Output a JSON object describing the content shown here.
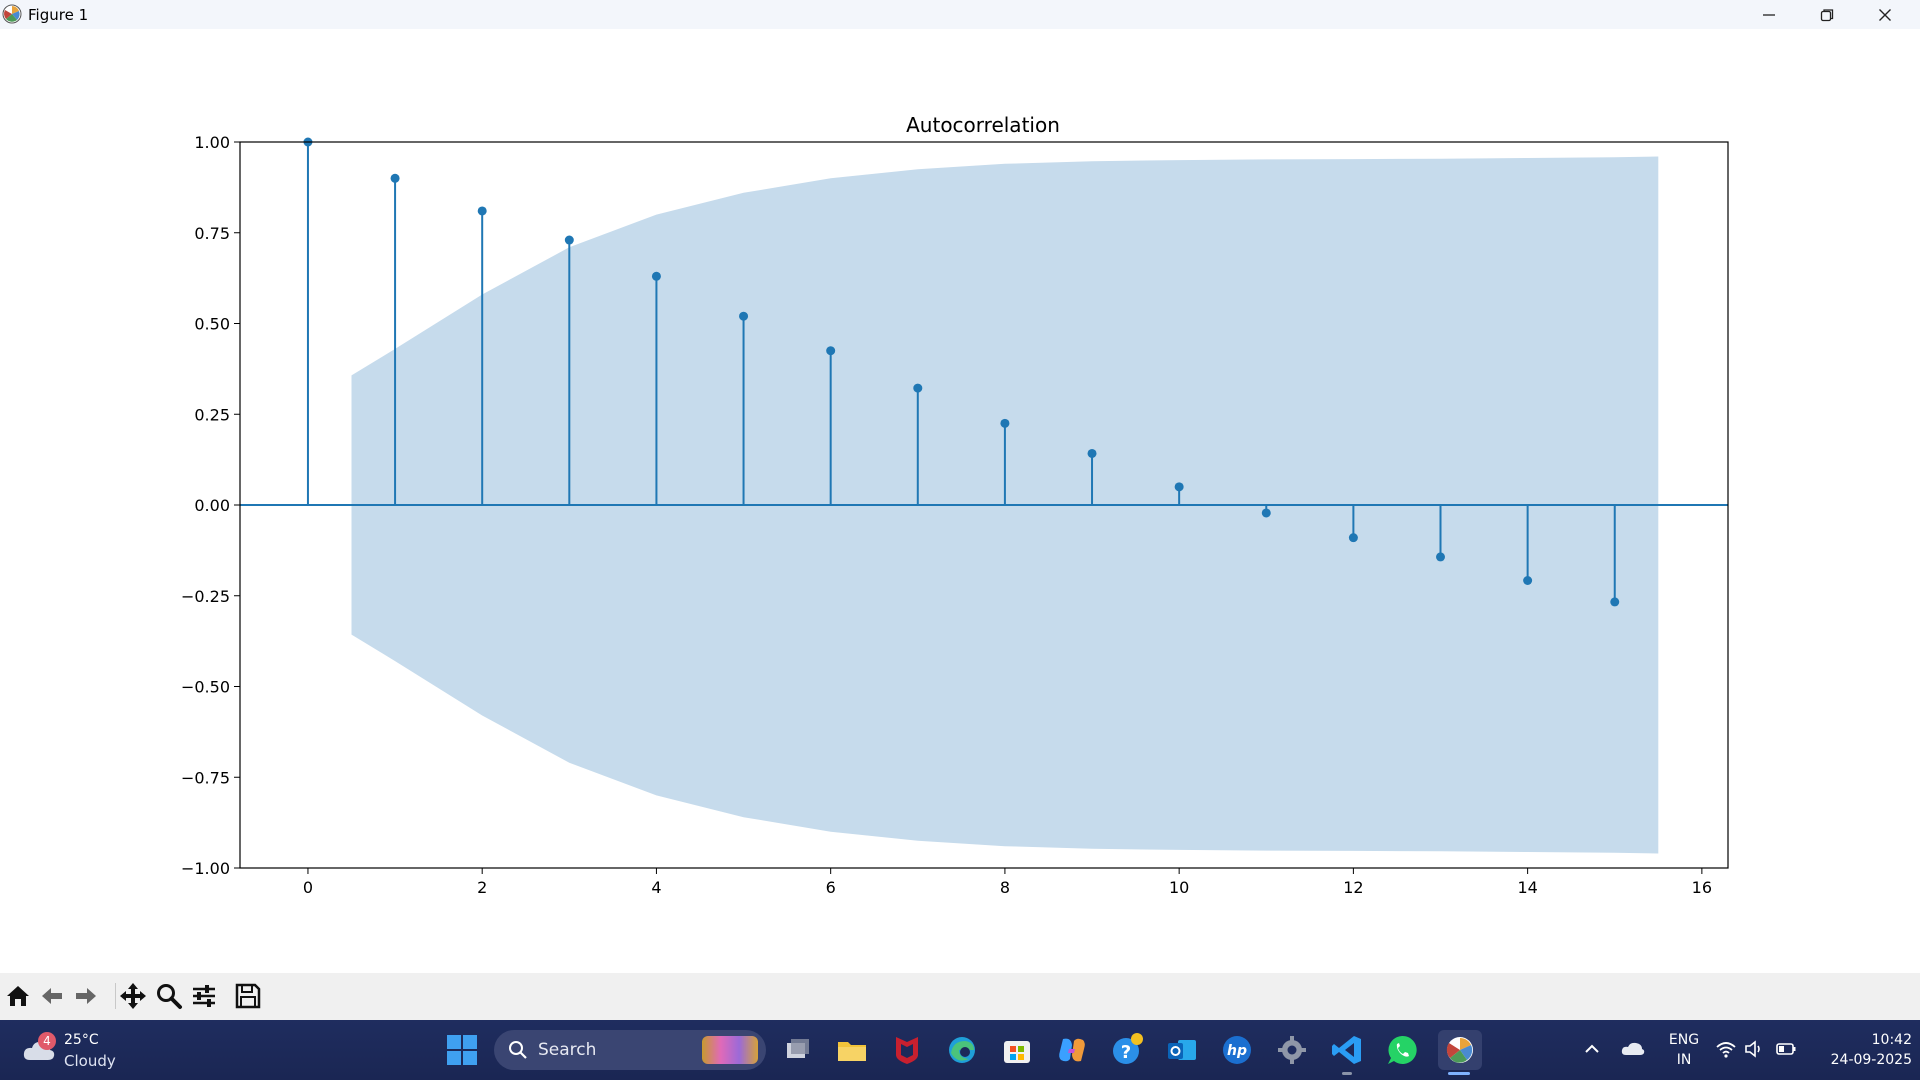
{
  "window": {
    "title": "Figure 1",
    "controls": [
      "minimize-icon",
      "restore-icon",
      "close-icon"
    ]
  },
  "chart_data": {
    "type": "stem",
    "title": "Autocorrelation",
    "xlabel": "",
    "ylabel": "",
    "x": [
      0,
      1,
      2,
      3,
      4,
      5,
      6,
      7,
      8,
      9,
      10,
      11,
      12,
      13,
      14,
      15
    ],
    "values": [
      1.0,
      0.9,
      0.81,
      0.73,
      0.63,
      0.52,
      0.425,
      0.322,
      0.225,
      0.142,
      0.05,
      -0.022,
      -0.09,
      -0.143,
      -0.208,
      -0.267
    ],
    "confidence_band": {
      "x": [
        0.5,
        1,
        2,
        3,
        4,
        5,
        6,
        7,
        8,
        9,
        10,
        11,
        12,
        13,
        14,
        15,
        15.5
      ],
      "upper": [
        0.357,
        0.43,
        0.58,
        0.71,
        0.8,
        0.86,
        0.9,
        0.925,
        0.94,
        0.947,
        0.95,
        0.952,
        0.953,
        0.954,
        0.956,
        0.958,
        0.96
      ]
    },
    "xlim": [
      -0.78,
      16.3
    ],
    "ylim": [
      -1.0,
      1.0
    ],
    "xticks": [
      0,
      2,
      4,
      6,
      8,
      10,
      12,
      14,
      16
    ],
    "xtick_labels": [
      "0",
      "2",
      "4",
      "6",
      "8",
      "10",
      "12",
      "14",
      "16"
    ],
    "yticks": [
      1.0,
      0.75,
      0.5,
      0.25,
      0.0,
      -0.25,
      -0.5,
      -0.75,
      -1.0
    ],
    "ytick_labels": [
      "1.00",
      "0.75",
      "0.50",
      "0.25",
      "0.00",
      "−0.25",
      "−0.50",
      "−0.75",
      "−1.00"
    ],
    "grid": false,
    "colors": {
      "series": "#1f77b4",
      "band": "#c6dbec"
    }
  },
  "toolbar": {
    "buttons": [
      "home-icon",
      "back-icon",
      "forward-icon",
      "pan-icon",
      "zoom-icon",
      "configure-subplots-icon",
      "save-icon"
    ]
  },
  "taskbar": {
    "weather": {
      "badge": "4",
      "temperature": "25°C",
      "condition": "Cloudy"
    },
    "search_label": "Search",
    "apps": [
      "task-view-icon",
      "file-explorer-icon",
      "mcafee-icon",
      "edge-icon",
      "microsoft-store-icon",
      "copilot-icon",
      "get-help-icon",
      "outlook-icon",
      "hp-icon",
      "settings-icon",
      "vscode-icon",
      "whatsapp-icon",
      "matplotlib-figure-icon"
    ],
    "tray": {
      "language_line1": "ENG",
      "language_line2": "IN",
      "time": "10:42",
      "date": "24-09-2025"
    }
  }
}
